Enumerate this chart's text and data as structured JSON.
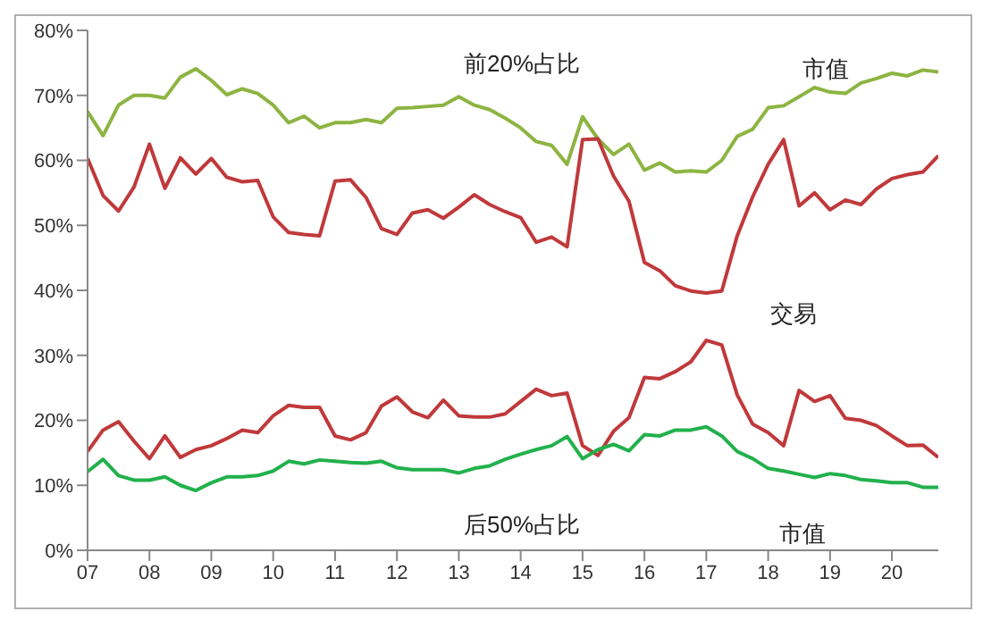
{
  "chart_data": {
    "type": "line",
    "x": [
      2007,
      2007.25,
      2007.5,
      2007.75,
      2008,
      2008.25,
      2008.5,
      2008.75,
      2009,
      2009.25,
      2009.5,
      2009.75,
      2010,
      2010.25,
      2010.5,
      2010.75,
      2011,
      2011.25,
      2011.5,
      2011.75,
      2012,
      2012.25,
      2012.5,
      2012.75,
      2013,
      2013.25,
      2013.5,
      2013.75,
      2014,
      2014.25,
      2014.5,
      2014.75,
      2015,
      2015.25,
      2015.5,
      2015.75,
      2016,
      2016.25,
      2016.5,
      2016.75,
      2017,
      2017.25,
      2017.5,
      2017.75,
      2018,
      2018.25,
      2018.5,
      2018.75,
      2019,
      2019.25,
      2019.5,
      2019.75,
      2020,
      2020.25,
      2020.5,
      2020.75
    ],
    "series": [
      {
        "color": "#8db442",
        "values": [
          67.5,
          63.8,
          68.5,
          70,
          70,
          69.6,
          72.8,
          74.1,
          72.3,
          70.1,
          71,
          70.3,
          68.5,
          65.8,
          66.8,
          65,
          65.8,
          65.8,
          66.3,
          65.8,
          68,
          68.1,
          68.3,
          68.5,
          69.8,
          68.5,
          67.8,
          66.5,
          65,
          62.9,
          62.3,
          59.4,
          66.7,
          63.3,
          60.9,
          62.5,
          58.5,
          59.6,
          58.2,
          58.4,
          58.2,
          60,
          63.7,
          64.8,
          68.1,
          68.4,
          69.8,
          71.2,
          70.5,
          70.3,
          71.9,
          72.6,
          73.4,
          73,
          73.9,
          73.6
        ]
      },
      {
        "color": "#c0393b",
        "values": [
          60.3,
          54.6,
          52.2,
          55.9,
          62.5,
          55.7,
          60.4,
          57.9,
          60.3,
          57.4,
          56.7,
          56.9,
          51.3,
          48.9,
          48.6,
          48.4,
          56.8,
          57,
          54.3,
          49.5,
          48.6,
          51.9,
          52.4,
          51.1,
          52.8,
          54.7,
          53.2,
          52.1,
          51.2,
          47.4,
          48.2,
          46.7,
          63.2,
          63.3,
          57.6,
          53.7,
          44.3,
          43,
          40.7,
          39.9,
          39.6,
          39.9,
          48.4,
          54.4,
          59.4,
          63.2,
          53,
          55,
          52.4,
          53.9,
          53.2,
          55.6,
          57.2,
          57.8,
          58.2,
          60.7
        ]
      },
      {
        "color": "#c0393b",
        "values": [
          15.2,
          18.5,
          19.8,
          16.8,
          14.1,
          17.6,
          14.3,
          15.5,
          16.1,
          17.2,
          18.5,
          18.1,
          20.7,
          22.3,
          22,
          22,
          17.6,
          17,
          18.1,
          22.2,
          23.6,
          21.3,
          20.4,
          23.1,
          20.7,
          20.5,
          20.5,
          21,
          22.9,
          24.8,
          23.8,
          24.2,
          16.1,
          14.6,
          18.3,
          20.4,
          26.6,
          26.4,
          27.5,
          29,
          32.3,
          31.6,
          23.9,
          19.4,
          18.1,
          16.1,
          24.6,
          22.9,
          23.8,
          20.3,
          20,
          19.2,
          17.6,
          16.1,
          16.2,
          14.3
        ]
      },
      {
        "color": "#22b14c",
        "values": [
          12.1,
          14,
          11.5,
          10.8,
          10.8,
          11.3,
          10,
          9.2,
          10.4,
          11.3,
          11.3,
          11.5,
          12.2,
          13.7,
          13.3,
          13.9,
          13.7,
          13.5,
          13.4,
          13.7,
          12.7,
          12.4,
          12.4,
          12.4,
          11.9,
          12.6,
          13,
          14,
          14.8,
          15.5,
          16.1,
          17.5,
          14.1,
          15.5,
          16.3,
          15.3,
          17.8,
          17.6,
          18.5,
          18.5,
          19,
          17.6,
          15.2,
          14.1,
          12.6,
          12.2,
          11.7,
          11.2,
          11.8,
          11.5,
          10.9,
          10.7,
          10.4,
          10.4,
          9.7,
          9.7
        ]
      }
    ],
    "xlim": [
      2007,
      2020.75
    ],
    "xticks": [
      {
        "value": 2007,
        "label": "07"
      },
      {
        "value": 2008,
        "label": "08"
      },
      {
        "value": 2009,
        "label": "09"
      },
      {
        "value": 2010,
        "label": "10"
      },
      {
        "value": 2011,
        "label": "11"
      },
      {
        "value": 2012,
        "label": "12"
      },
      {
        "value": 2013,
        "label": "13"
      },
      {
        "value": 2014,
        "label": "14"
      },
      {
        "value": 2015,
        "label": "15"
      },
      {
        "value": 2016,
        "label": "16"
      },
      {
        "value": 2017,
        "label": "17"
      },
      {
        "value": 2018,
        "label": "18"
      },
      {
        "value": 2019,
        "label": "19"
      },
      {
        "value": 2020,
        "label": "20"
      }
    ],
    "ylim": [
      0,
      80
    ],
    "yticks": [
      {
        "value": 0,
        "label": "0%"
      },
      {
        "value": 10,
        "label": "10%"
      },
      {
        "value": 20,
        "label": "20%"
      },
      {
        "value": 30,
        "label": "30%"
      },
      {
        "value": 40,
        "label": "40%"
      },
      {
        "value": 50,
        "label": "50%"
      },
      {
        "value": 60,
        "label": "60%"
      },
      {
        "value": 70,
        "label": "70%"
      },
      {
        "value": 80,
        "label": "80%"
      }
    ],
    "annotations": [
      "前20%占比",
      "市值",
      "交易",
      "后50%占比",
      "市值"
    ]
  }
}
